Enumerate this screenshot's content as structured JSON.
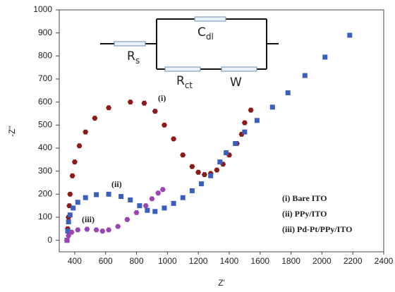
{
  "chart_data": {
    "type": "scatter",
    "x_label": "Z'",
    "y_label": "-Z''",
    "xlim": [
      300,
      2400
    ],
    "xticks": [
      400,
      600,
      800,
      1000,
      1200,
      1400,
      1600,
      1800,
      2000,
      2200,
      2400
    ],
    "ylim": [
      -50,
      1000
    ],
    "yticks": [
      0,
      100,
      200,
      300,
      400,
      500,
      600,
      700,
      800,
      900,
      1000
    ],
    "grid": false,
    "series": [
      {
        "name": "(i) Bare ITO",
        "color": "#8b1a1a",
        "marker": "hexagon",
        "x": [
          350,
          355,
          360,
          365,
          370,
          385,
          400,
          430,
          470,
          530,
          620,
          760,
          850,
          920,
          980,
          1040,
          1100,
          1160,
          1200,
          1240,
          1280,
          1320,
          1360,
          1400,
          1450,
          1480,
          1500,
          1540
        ],
        "values": [
          0,
          50,
          100,
          150,
          200,
          280,
          340,
          410,
          470,
          530,
          575,
          600,
          595,
          560,
          500,
          440,
          370,
          320,
          295,
          285,
          290,
          305,
          330,
          370,
          420,
          460,
          510,
          565
        ]
      },
      {
        "name": "(ii) PPy/ITO",
        "color": "#3a5fbf",
        "marker": "square",
        "x": [
          350,
          355,
          360,
          370,
          390,
          420,
          470,
          540,
          620,
          700,
          760,
          820,
          870,
          920,
          980,
          1040,
          1100,
          1160,
          1220,
          1280,
          1340,
          1380,
          1440,
          1500,
          1580,
          1680,
          1780,
          1890,
          2020,
          2180
        ],
        "values": [
          0,
          40,
          80,
          110,
          140,
          165,
          185,
          198,
          200,
          190,
          175,
          150,
          130,
          125,
          140,
          160,
          185,
          215,
          245,
          280,
          340,
          380,
          420,
          470,
          520,
          578,
          640,
          715,
          795,
          890
        ]
      },
      {
        "name": "(iii) Pd-Pt/PPy/ITO",
        "color": "#9b45b5",
        "marker": "hexagon",
        "x": [
          350,
          360,
          380,
          420,
          480,
          540,
          580,
          620,
          680,
          740,
          800,
          860,
          900,
          940,
          970
        ],
        "values": [
          0,
          20,
          35,
          45,
          48,
          45,
          40,
          45,
          60,
          90,
          120,
          150,
          180,
          205,
          220
        ]
      }
    ],
    "annotations": [
      "(i)",
      "(ii)",
      "(iii)"
    ],
    "circuit": [
      {
        "label": "R",
        "sub": "s"
      },
      {
        "label": "C",
        "sub": "dl"
      },
      {
        "label": "R",
        "sub": "ct"
      },
      {
        "label": "W",
        "sub": null
      }
    ]
  }
}
